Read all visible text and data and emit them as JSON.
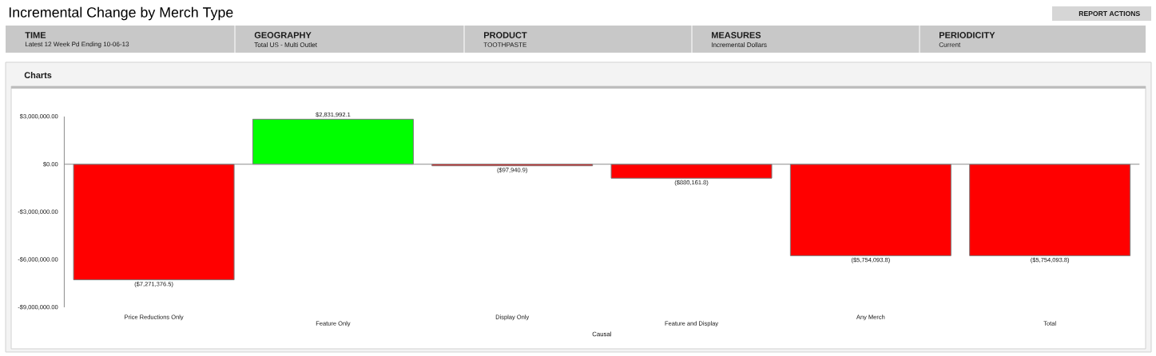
{
  "chart_data": {
    "type": "bar",
    "title": "Incremental Change by Merch Type",
    "xlabel": "Causal",
    "categories": [
      "Price Reductions Only",
      "Feature Only",
      "Display Only",
      "Feature and Display",
      "Any Merch",
      "Total"
    ],
    "values": [
      -7271376.5,
      2831992.1,
      -97940.9,
      -880161.8,
      -5754093.8,
      -5754093.8
    ],
    "colors": [
      "#ff0000",
      "#00ff00",
      "#ff0000",
      "#ff0000",
      "#ff0000",
      "#ff0000"
    ],
    "value_labels": [
      "($7,271,376.5)",
      "$2,831,992.1",
      "($97,940.9)",
      "($880,161.8)",
      "($5,754,093.8)",
      "($5,754,093.8)"
    ],
    "ylim": [
      -9000000,
      3000000
    ],
    "yticks": [
      {
        "value": -9000000,
        "label": "-$9,000,000.00"
      },
      {
        "value": -6000000,
        "label": "-$6,000,000.00"
      },
      {
        "value": -3000000,
        "label": "-$3,000,000.00"
      },
      {
        "value": 0,
        "label": "$0.00"
      },
      {
        "value": 3000000,
        "label": "$3,000,000.00"
      }
    ],
    "annotations": [
      "REPORT ACTIONS",
      "TIME",
      "Latest 12 Week Pd Ending 10-06-13",
      "GEOGRAPHY",
      "Total US - Multi Outlet",
      "PRODUCT",
      "TOOTHPASTE",
      "MEASURES",
      "Incremental Dollars",
      "PERIODICITY",
      "Current",
      "Charts"
    ]
  }
}
